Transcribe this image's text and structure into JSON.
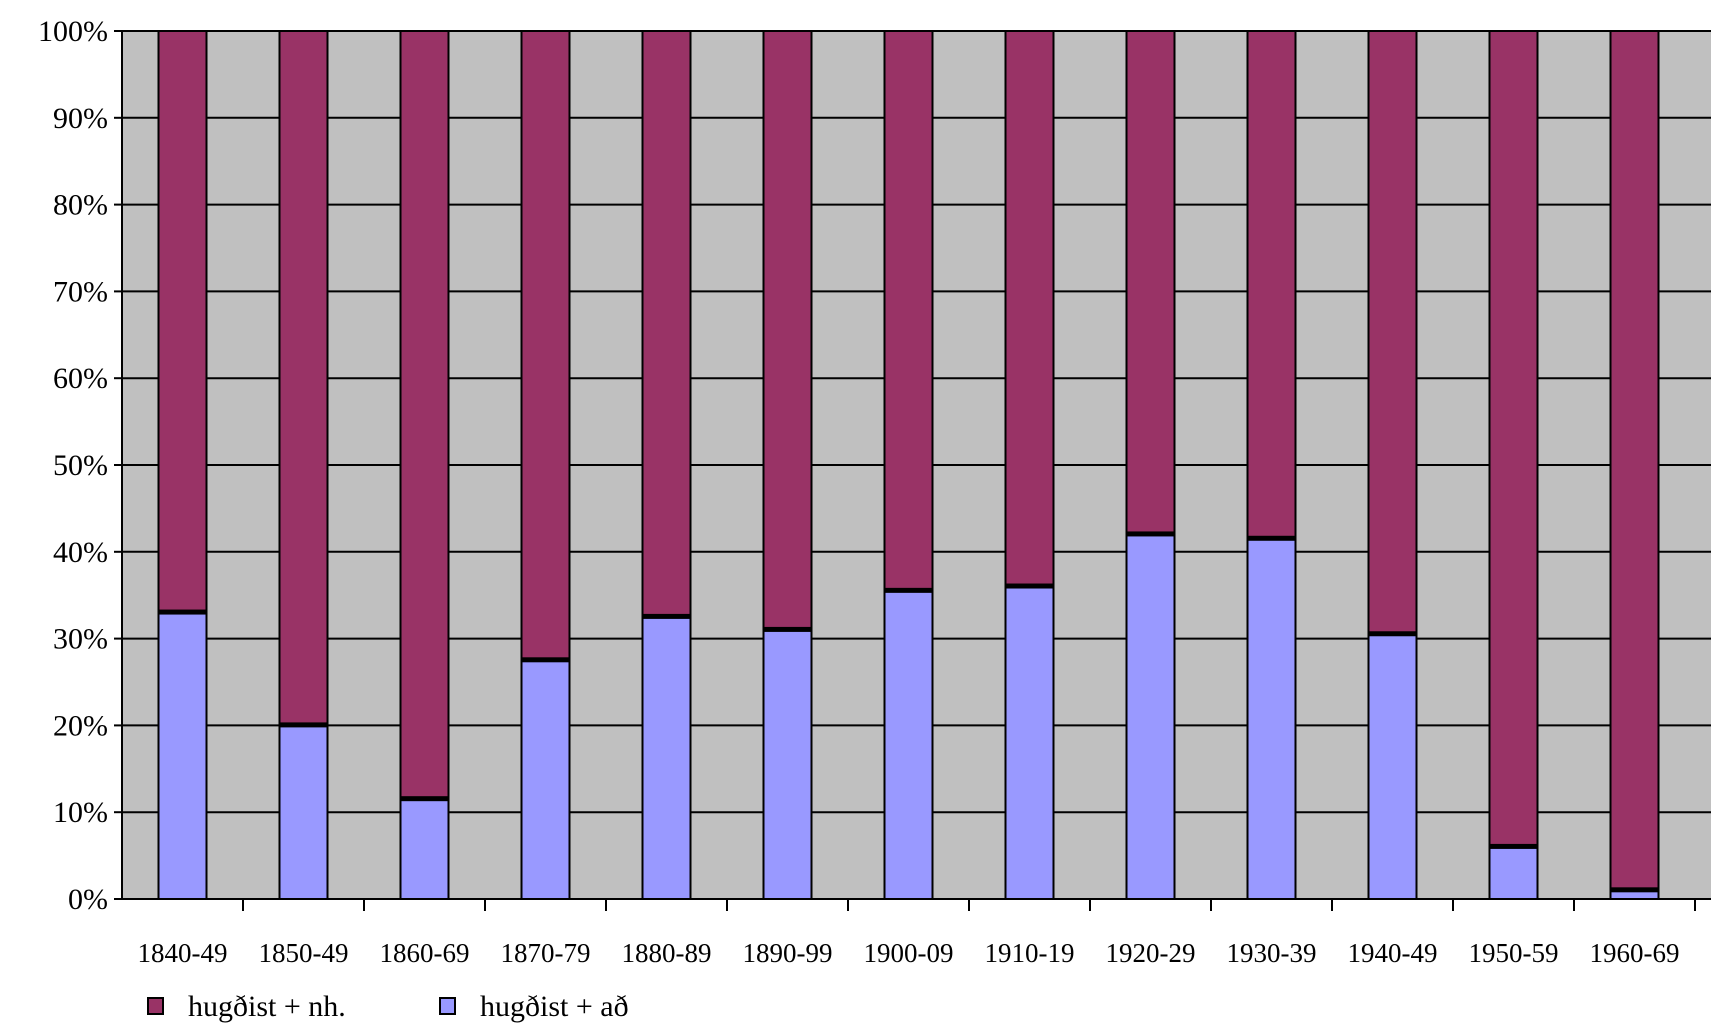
{
  "chart_data": {
    "type": "bar",
    "stacked": "percent",
    "categories": [
      "1840-49",
      "1850-49",
      "1860-69",
      "1870-79",
      "1880-89",
      "1890-99",
      "1900-09",
      "1910-19",
      "1920-29",
      "1930-39",
      "1940-49",
      "1950-59",
      "1960-69"
    ],
    "series": [
      {
        "name": "hugðist + að",
        "color": "#9999ff",
        "values": [
          33,
          20,
          11.5,
          27.5,
          32.5,
          31,
          35.5,
          36,
          42,
          41.5,
          30.5,
          6,
          1
        ]
      },
      {
        "name": "hugðist + nh.",
        "color": "#993366",
        "values": [
          67,
          80,
          88.5,
          72.5,
          67.5,
          69,
          64.5,
          64,
          58,
          58.5,
          69.5,
          94,
          99
        ]
      }
    ],
    "yticks": [
      "0%",
      "10%",
      "20%",
      "30%",
      "40%",
      "50%",
      "60%",
      "70%",
      "80%",
      "90%",
      "100%"
    ],
    "ylim": [
      0,
      100
    ],
    "title": "",
    "xlabel": "",
    "ylabel": "",
    "plot_background": "#c0c0c0",
    "grid": true,
    "legend": "bottom-left"
  }
}
